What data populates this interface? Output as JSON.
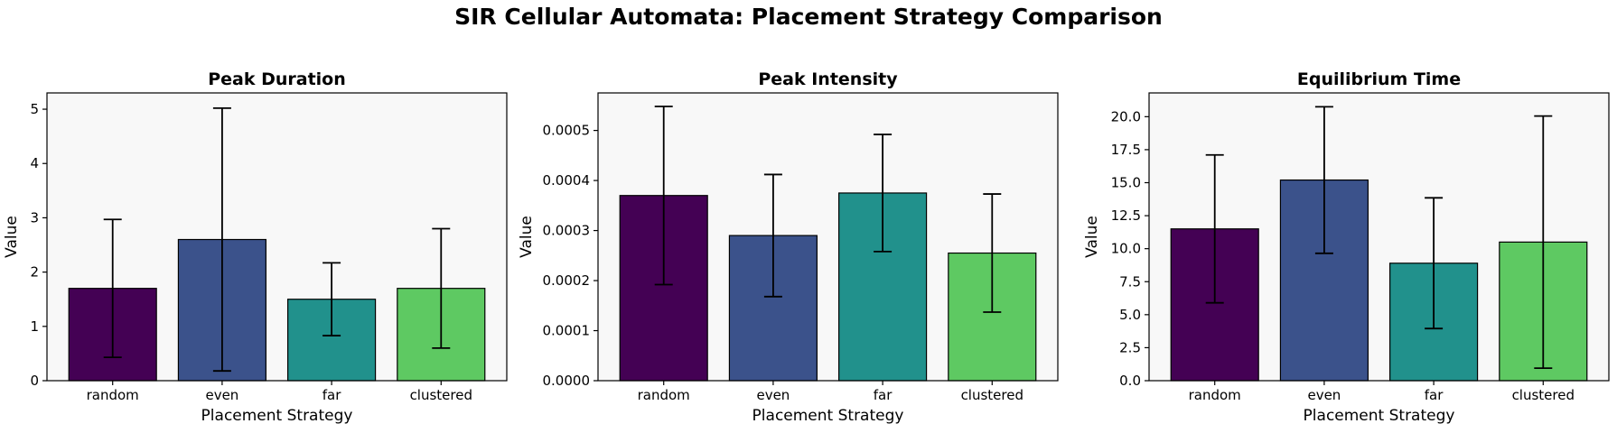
{
  "figure": {
    "title": "SIR Cellular Automata: Placement Strategy Comparison"
  },
  "chart_data": [
    {
      "type": "bar",
      "title": "Peak Duration",
      "xlabel": "Placement Strategy",
      "ylabel": "Value",
      "categories": [
        "random",
        "even",
        "far",
        "clustered"
      ],
      "values": [
        1.7,
        2.6,
        1.5,
        1.7
      ],
      "errors": [
        1.27,
        2.42,
        0.67,
        1.1
      ],
      "colors": [
        "#440154",
        "#3b528b",
        "#21918c",
        "#5ec962"
      ],
      "ylim": [
        0,
        5.3
      ],
      "yticks": [
        0,
        1,
        2,
        3,
        4,
        5
      ],
      "ytick_labels": [
        "0",
        "1",
        "2",
        "3",
        "4",
        "5"
      ]
    },
    {
      "type": "bar",
      "title": "Peak Intensity",
      "xlabel": "Placement Strategy",
      "ylabel": "Value",
      "categories": [
        "random",
        "even",
        "far",
        "clustered"
      ],
      "values": [
        0.00037,
        0.00029,
        0.000375,
        0.000255
      ],
      "errors": [
        0.000178,
        0.000122,
        0.000117,
        0.000118
      ],
      "colors": [
        "#440154",
        "#3b528b",
        "#21918c",
        "#5ec962"
      ],
      "ylim": [
        0,
        0.000575
      ],
      "yticks": [
        0,
        0.0001,
        0.0002,
        0.0003,
        0.0004,
        0.0005
      ],
      "ytick_labels": [
        "0.0000",
        "0.0001",
        "0.0002",
        "0.0003",
        "0.0004",
        "0.0005"
      ]
    },
    {
      "type": "bar",
      "title": "Equilibrium Time",
      "xlabel": "Placement Strategy",
      "ylabel": "Value",
      "categories": [
        "random",
        "even",
        "far",
        "clustered"
      ],
      "values": [
        11.5,
        15.2,
        8.9,
        10.5
      ],
      "errors": [
        5.6,
        5.55,
        4.95,
        9.55
      ],
      "colors": [
        "#440154",
        "#3b528b",
        "#21918c",
        "#5ec962"
      ],
      "ylim": [
        0,
        21.8
      ],
      "yticks": [
        0,
        2.5,
        5,
        7.5,
        10,
        12.5,
        15,
        17.5,
        20
      ],
      "ytick_labels": [
        "0.0",
        "2.5",
        "5.0",
        "7.5",
        "10.0",
        "12.5",
        "15.0",
        "17.5",
        "20.0"
      ]
    }
  ]
}
